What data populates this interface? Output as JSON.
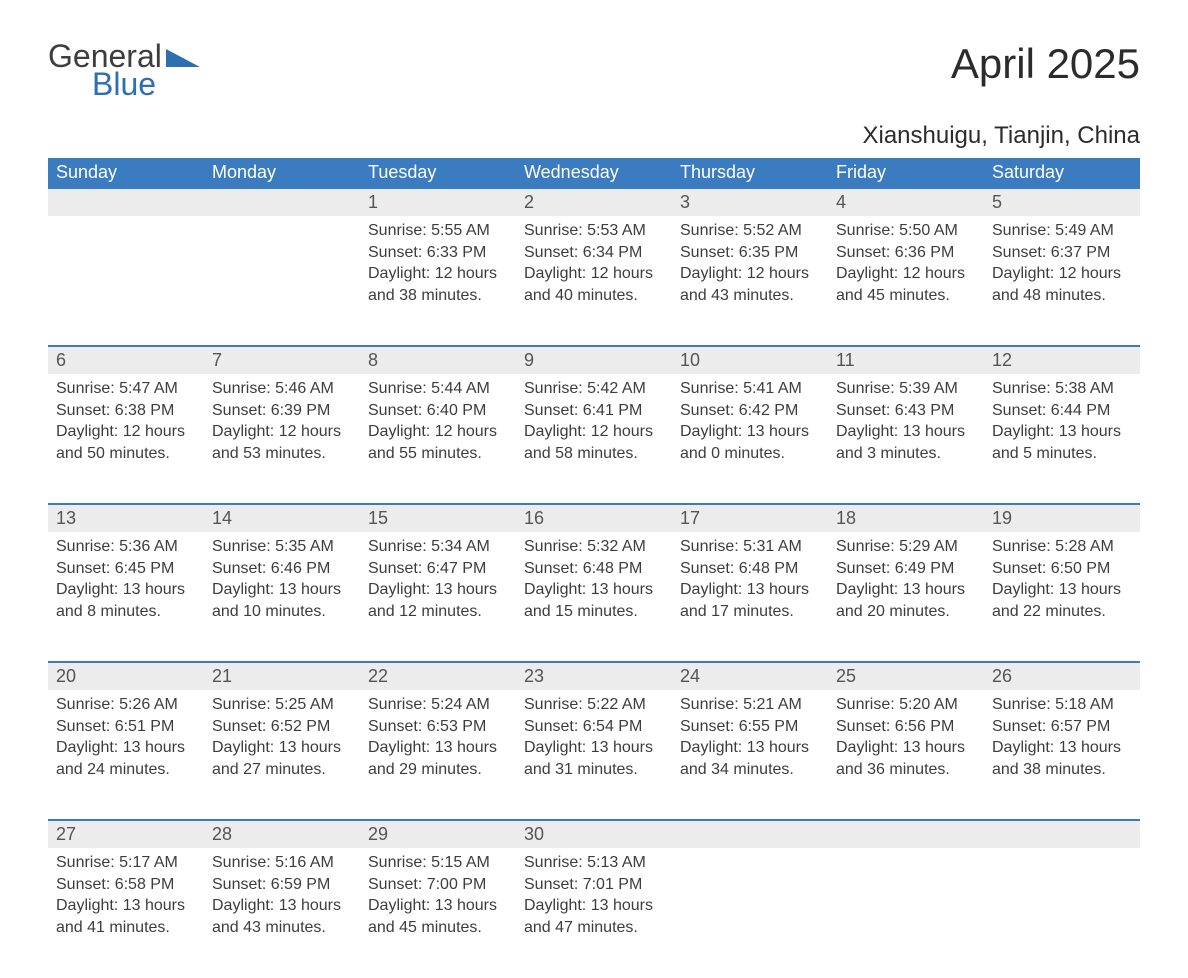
{
  "logo": {
    "top": "General",
    "bottom": "Blue"
  },
  "title": "April 2025",
  "location": "Xianshuigu, Tianjin, China",
  "colors": {
    "header_bg": "#3b7bbf",
    "daynum_bg": "#ececec",
    "row_border": "#3b7bbf",
    "text": "#3d3d3d",
    "logo_blue": "#2f6fb0",
    "background": "#ffffff"
  },
  "day_headers": [
    "Sunday",
    "Monday",
    "Tuesday",
    "Wednesday",
    "Thursday",
    "Friday",
    "Saturday"
  ],
  "weeks": [
    [
      {
        "n": "",
        "sunrise": "",
        "sunset": "",
        "daylight": ""
      },
      {
        "n": "",
        "sunrise": "",
        "sunset": "",
        "daylight": ""
      },
      {
        "n": "1",
        "sunrise": "5:55 AM",
        "sunset": "6:33 PM",
        "daylight": "12 hours and 38 minutes."
      },
      {
        "n": "2",
        "sunrise": "5:53 AM",
        "sunset": "6:34 PM",
        "daylight": "12 hours and 40 minutes."
      },
      {
        "n": "3",
        "sunrise": "5:52 AM",
        "sunset": "6:35 PM",
        "daylight": "12 hours and 43 minutes."
      },
      {
        "n": "4",
        "sunrise": "5:50 AM",
        "sunset": "6:36 PM",
        "daylight": "12 hours and 45 minutes."
      },
      {
        "n": "5",
        "sunrise": "5:49 AM",
        "sunset": "6:37 PM",
        "daylight": "12 hours and 48 minutes."
      }
    ],
    [
      {
        "n": "6",
        "sunrise": "5:47 AM",
        "sunset": "6:38 PM",
        "daylight": "12 hours and 50 minutes."
      },
      {
        "n": "7",
        "sunrise": "5:46 AM",
        "sunset": "6:39 PM",
        "daylight": "12 hours and 53 minutes."
      },
      {
        "n": "8",
        "sunrise": "5:44 AM",
        "sunset": "6:40 PM",
        "daylight": "12 hours and 55 minutes."
      },
      {
        "n": "9",
        "sunrise": "5:42 AM",
        "sunset": "6:41 PM",
        "daylight": "12 hours and 58 minutes."
      },
      {
        "n": "10",
        "sunrise": "5:41 AM",
        "sunset": "6:42 PM",
        "daylight": "13 hours and 0 minutes."
      },
      {
        "n": "11",
        "sunrise": "5:39 AM",
        "sunset": "6:43 PM",
        "daylight": "13 hours and 3 minutes."
      },
      {
        "n": "12",
        "sunrise": "5:38 AM",
        "sunset": "6:44 PM",
        "daylight": "13 hours and 5 minutes."
      }
    ],
    [
      {
        "n": "13",
        "sunrise": "5:36 AM",
        "sunset": "6:45 PM",
        "daylight": "13 hours and 8 minutes."
      },
      {
        "n": "14",
        "sunrise": "5:35 AM",
        "sunset": "6:46 PM",
        "daylight": "13 hours and 10 minutes."
      },
      {
        "n": "15",
        "sunrise": "5:34 AM",
        "sunset": "6:47 PM",
        "daylight": "13 hours and 12 minutes."
      },
      {
        "n": "16",
        "sunrise": "5:32 AM",
        "sunset": "6:48 PM",
        "daylight": "13 hours and 15 minutes."
      },
      {
        "n": "17",
        "sunrise": "5:31 AM",
        "sunset": "6:48 PM",
        "daylight": "13 hours and 17 minutes."
      },
      {
        "n": "18",
        "sunrise": "5:29 AM",
        "sunset": "6:49 PM",
        "daylight": "13 hours and 20 minutes."
      },
      {
        "n": "19",
        "sunrise": "5:28 AM",
        "sunset": "6:50 PM",
        "daylight": "13 hours and 22 minutes."
      }
    ],
    [
      {
        "n": "20",
        "sunrise": "5:26 AM",
        "sunset": "6:51 PM",
        "daylight": "13 hours and 24 minutes."
      },
      {
        "n": "21",
        "sunrise": "5:25 AM",
        "sunset": "6:52 PM",
        "daylight": "13 hours and 27 minutes."
      },
      {
        "n": "22",
        "sunrise": "5:24 AM",
        "sunset": "6:53 PM",
        "daylight": "13 hours and 29 minutes."
      },
      {
        "n": "23",
        "sunrise": "5:22 AM",
        "sunset": "6:54 PM",
        "daylight": "13 hours and 31 minutes."
      },
      {
        "n": "24",
        "sunrise": "5:21 AM",
        "sunset": "6:55 PM",
        "daylight": "13 hours and 34 minutes."
      },
      {
        "n": "25",
        "sunrise": "5:20 AM",
        "sunset": "6:56 PM",
        "daylight": "13 hours and 36 minutes."
      },
      {
        "n": "26",
        "sunrise": "5:18 AM",
        "sunset": "6:57 PM",
        "daylight": "13 hours and 38 minutes."
      }
    ],
    [
      {
        "n": "27",
        "sunrise": "5:17 AM",
        "sunset": "6:58 PM",
        "daylight": "13 hours and 41 minutes."
      },
      {
        "n": "28",
        "sunrise": "5:16 AM",
        "sunset": "6:59 PM",
        "daylight": "13 hours and 43 minutes."
      },
      {
        "n": "29",
        "sunrise": "5:15 AM",
        "sunset": "7:00 PM",
        "daylight": "13 hours and 45 minutes."
      },
      {
        "n": "30",
        "sunrise": "5:13 AM",
        "sunset": "7:01 PM",
        "daylight": "13 hours and 47 minutes."
      },
      {
        "n": "",
        "sunrise": "",
        "sunset": "",
        "daylight": ""
      },
      {
        "n": "",
        "sunrise": "",
        "sunset": "",
        "daylight": ""
      },
      {
        "n": "",
        "sunrise": "",
        "sunset": "",
        "daylight": ""
      }
    ]
  ],
  "labels": {
    "sunrise": "Sunrise: ",
    "sunset": "Sunset: ",
    "daylight": "Daylight: "
  }
}
